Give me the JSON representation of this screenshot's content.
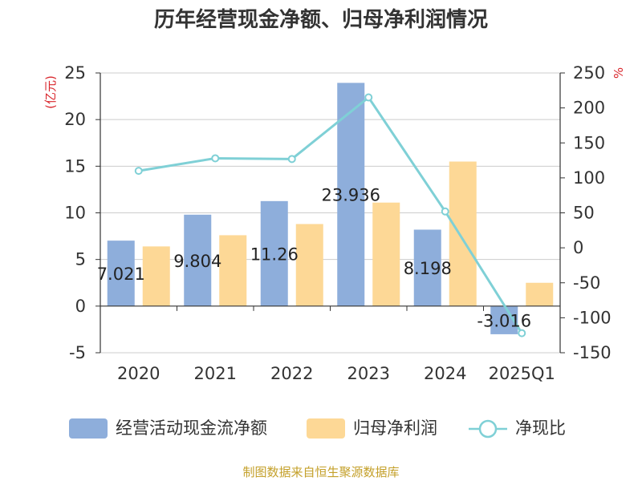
{
  "chart_data": {
    "type": "bar",
    "title": "历年经营现金净额、归母净利润情况",
    "categories": [
      "2020",
      "2021",
      "2022",
      "2023",
      "2024",
      "2025Q1"
    ],
    "left_axis": {
      "unit": "(亿元)",
      "ylim": [
        -5,
        25
      ],
      "ticks": [
        "25",
        "20",
        "15",
        "10",
        "5",
        "0",
        "-5"
      ]
    },
    "right_axis": {
      "unit": "%",
      "ylim": [
        -150,
        250
      ],
      "ticks": [
        "250",
        "200",
        "150",
        "100",
        "50",
        "0",
        "-50",
        "-100",
        "-150"
      ]
    },
    "series": [
      {
        "name": "经营活动现金流净额",
        "kind": "bar",
        "axis": "left",
        "values": [
          7.021,
          9.804,
          11.26,
          23.936,
          8.198,
          -3.016
        ],
        "labels": [
          "7.021",
          "9.804",
          "11.26",
          "23.936",
          "8.198",
          "-3.016"
        ]
      },
      {
        "name": "归母净利润",
        "kind": "bar",
        "axis": "left",
        "values": [
          6.4,
          7.6,
          8.8,
          11.1,
          15.5,
          2.5
        ]
      },
      {
        "name": "净现比",
        "kind": "line",
        "axis": "right",
        "values": [
          110,
          128,
          127,
          215,
          52,
          -122
        ]
      }
    ],
    "legend_position": "bottom",
    "colors": {
      "cash": "#8eaedb",
      "profit": "#fdd896",
      "ratio": "#7fd0d6",
      "axis_unit": "#d9262c"
    }
  },
  "footer": {
    "source": "制图数据来自恒生聚源数据库"
  }
}
